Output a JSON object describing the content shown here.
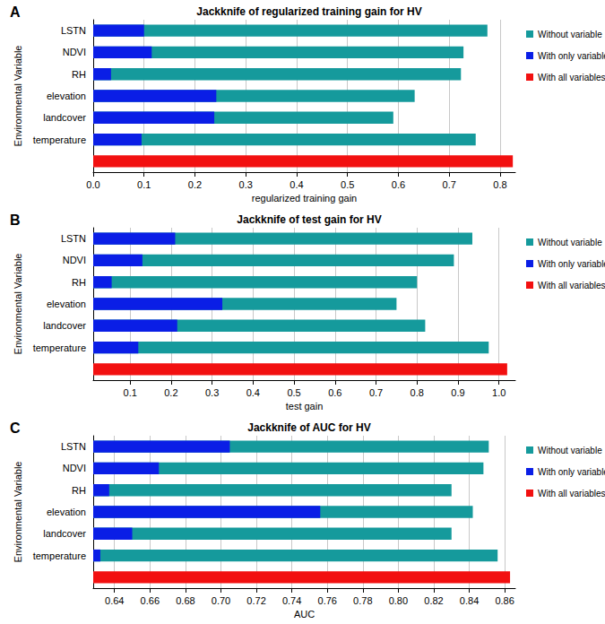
{
  "chart_data": [
    {
      "type": "bar",
      "orientation": "horizontal",
      "label": "A",
      "title": "Jackknife of regularized training gain for HV",
      "xlabel": "regularized training gain",
      "ylabel": "Environmental Variable",
      "categories": [
        "LSTN",
        "NDVI",
        "RH",
        "elevation",
        "landcover",
        "temperature",
        null
      ],
      "series": [
        {
          "name": "Without variable",
          "color": "#159a9c",
          "values": [
            0.775,
            0.728,
            0.723,
            0.632,
            0.59,
            0.752,
            null
          ]
        },
        {
          "name": "With only variable",
          "color": "#0a1ee6",
          "values": [
            0.1,
            0.115,
            0.035,
            0.242,
            0.238,
            0.095,
            null
          ]
        },
        {
          "name": "With all variables",
          "color": "#f21010",
          "values": [
            null,
            null,
            null,
            null,
            null,
            null,
            0.825
          ]
        }
      ],
      "xlim": [
        0,
        0.83
      ],
      "xticks": [
        {
          "value": 0,
          "label": "0.0"
        },
        0.1,
        0.2,
        0.3,
        0.4,
        0.5,
        0.6,
        0.7,
        0.8
      ],
      "grid": true,
      "legend": "right"
    },
    {
      "type": "bar",
      "orientation": "horizontal",
      "label": "B",
      "title": "Jackknife of test gain for HV",
      "xlabel": "test gain",
      "ylabel": "Environmental Variable",
      "categories": [
        "LSTN",
        "NDVI",
        "RH",
        "elevation",
        "landcover",
        "temperature",
        null
      ],
      "series": [
        {
          "name": "Without variable",
          "color": "#159a9c",
          "values": [
            0.935,
            0.89,
            0.8,
            0.75,
            0.82,
            0.975,
            null
          ]
        },
        {
          "name": "With only variable",
          "color": "#0a1ee6",
          "values": [
            0.21,
            0.13,
            0.055,
            0.325,
            0.215,
            0.12,
            null
          ]
        },
        {
          "name": "With all variables",
          "color": "#f21010",
          "values": [
            null,
            null,
            null,
            null,
            null,
            null,
            1.02
          ]
        }
      ],
      "xlim": [
        0.01,
        1.04
      ],
      "xticks": [
        0.1,
        0.2,
        0.3,
        0.4,
        0.5,
        0.6,
        0.7,
        0.8,
        0.9,
        {
          "value": 1,
          "label": "1.0"
        }
      ],
      "grid": true,
      "legend": "right"
    },
    {
      "type": "bar",
      "orientation": "horizontal",
      "label": "C",
      "title": "Jackknife of AUC for HV",
      "xlabel": "AUC",
      "ylabel": "Environmental Variable",
      "categories": [
        "LSTN",
        "NDVI",
        "RH",
        "elevation",
        "landcover",
        "temperature",
        null
      ],
      "series": [
        {
          "name": "Without variable",
          "color": "#159a9c",
          "values": [
            0.851,
            0.848,
            0.83,
            0.842,
            0.83,
            0.856,
            null
          ]
        },
        {
          "name": "With only variable",
          "color": "#0a1ee6",
          "values": [
            0.705,
            0.665,
            0.637,
            0.756,
            0.65,
            0.632,
            null
          ]
        },
        {
          "name": "With all variables",
          "color": "#f21010",
          "values": [
            null,
            null,
            null,
            null,
            null,
            null,
            0.863
          ]
        }
      ],
      "xlim": [
        0.628,
        0.866
      ],
      "xticks": [
        0.64,
        0.66,
        0.68,
        {
          "value": 0.7,
          "label": "0.70"
        },
        0.72,
        0.74,
        0.76,
        0.78,
        {
          "value": 0.8,
          "label": "0.80"
        },
        0.82,
        0.84,
        0.86
      ],
      "grid": true,
      "legend": "right"
    }
  ]
}
